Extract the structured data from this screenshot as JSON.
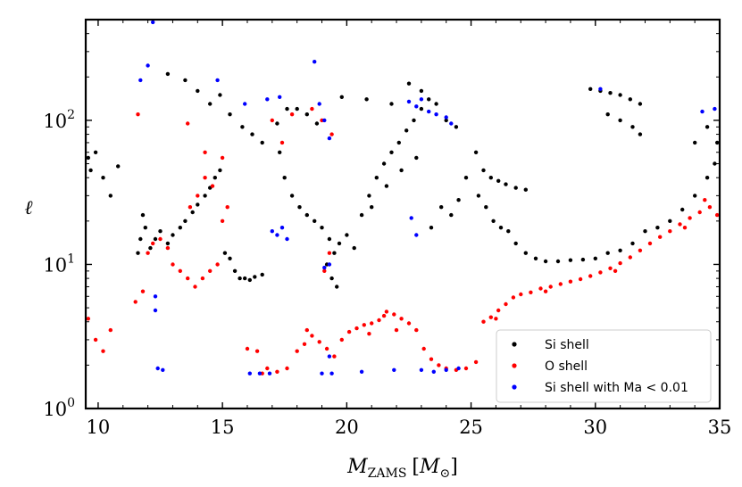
{
  "chart_data": {
    "type": "scatter",
    "title": "",
    "xlabel": "M_ZAMS [M_⊙]",
    "xlabel_parts": {
      "main": "M",
      "sub": "ZAMS",
      "bracket_open": "[",
      "bracket_close": "]",
      "unit_main": "M",
      "unit_sub": "⊙"
    },
    "ylabel": "ℓ",
    "xlim": [
      9.5,
      35
    ],
    "ylim": [
      1,
      500
    ],
    "yscale": "log",
    "x_ticks": [
      {
        "value": 10,
        "label": "10"
      },
      {
        "value": 15,
        "label": "15"
      },
      {
        "value": 20,
        "label": "20"
      },
      {
        "value": 25,
        "label": "25"
      },
      {
        "value": 30,
        "label": "30"
      },
      {
        "value": 35,
        "label": "35"
      }
    ],
    "y_ticks": [
      {
        "value": 1,
        "label": "10",
        "exp": "0"
      },
      {
        "value": 10,
        "label": "10",
        "exp": "1"
      },
      {
        "value": 100,
        "label": "10",
        "exp": "2"
      }
    ],
    "legend": {
      "placement": "lower-right",
      "entries": [
        "Si shell",
        "O shell",
        "Si shell with Ma < 0.01"
      ]
    },
    "series": [
      {
        "name": "Si shell",
        "color": "#000000",
        "points": [
          [
            9.6,
            55
          ],
          [
            9.7,
            45
          ],
          [
            9.9,
            60
          ],
          [
            10.2,
            40
          ],
          [
            10.5,
            30
          ],
          [
            10.8,
            48
          ],
          [
            11.6,
            12
          ],
          [
            11.7,
            15
          ],
          [
            11.8,
            22
          ],
          [
            11.9,
            18
          ],
          [
            12.1,
            13
          ],
          [
            12.3,
            15
          ],
          [
            12.5,
            17
          ],
          [
            12.8,
            14
          ],
          [
            13.0,
            16
          ],
          [
            13.3,
            18
          ],
          [
            13.5,
            20
          ],
          [
            13.8,
            23
          ],
          [
            14.0,
            26
          ],
          [
            14.3,
            30
          ],
          [
            14.5,
            34
          ],
          [
            14.7,
            40
          ],
          [
            14.9,
            45
          ],
          [
            15.1,
            12
          ],
          [
            15.3,
            11
          ],
          [
            15.5,
            9
          ],
          [
            15.7,
            8
          ],
          [
            15.9,
            8
          ],
          [
            16.1,
            7.8
          ],
          [
            16.3,
            8.2
          ],
          [
            16.6,
            8.5
          ],
          [
            12.8,
            210
          ],
          [
            13.5,
            190
          ],
          [
            14.0,
            160
          ],
          [
            14.5,
            130
          ],
          [
            14.9,
            150
          ],
          [
            15.3,
            110
          ],
          [
            15.8,
            90
          ],
          [
            16.2,
            80
          ],
          [
            16.6,
            70
          ],
          [
            17.2,
            95
          ],
          [
            17.6,
            120
          ],
          [
            18.0,
            120
          ],
          [
            18.4,
            110
          ],
          [
            18.8,
            95
          ],
          [
            17.3,
            60
          ],
          [
            17.5,
            40
          ],
          [
            17.8,
            30
          ],
          [
            18.1,
            25
          ],
          [
            18.4,
            22
          ],
          [
            18.7,
            20
          ],
          [
            19.0,
            18
          ],
          [
            19.3,
            15
          ],
          [
            19.5,
            12
          ],
          [
            19.7,
            14
          ],
          [
            20.0,
            16
          ],
          [
            20.3,
            13
          ],
          [
            20.6,
            22
          ],
          [
            20.9,
            30
          ],
          [
            21.2,
            40
          ],
          [
            21.5,
            50
          ],
          [
            21.8,
            60
          ],
          [
            22.1,
            70
          ],
          [
            22.4,
            85
          ],
          [
            22.7,
            100
          ],
          [
            23.0,
            120
          ],
          [
            23.3,
            140
          ],
          [
            23.6,
            130
          ],
          [
            24.0,
            100
          ],
          [
            24.4,
            90
          ],
          [
            22.5,
            180
          ],
          [
            23.0,
            160
          ],
          [
            19.4,
            8
          ],
          [
            19.6,
            7
          ],
          [
            19.2,
            10
          ],
          [
            25.2,
            60
          ],
          [
            25.5,
            45
          ],
          [
            25.8,
            40
          ],
          [
            26.1,
            38
          ],
          [
            26.4,
            36
          ],
          [
            26.8,
            34
          ],
          [
            27.2,
            33
          ],
          [
            25.3,
            30
          ],
          [
            25.6,
            25
          ],
          [
            25.9,
            20
          ],
          [
            26.2,
            18
          ],
          [
            26.5,
            17
          ],
          [
            26.8,
            14
          ],
          [
            27.2,
            12
          ],
          [
            27.6,
            11
          ],
          [
            28.0,
            10.5
          ],
          [
            28.5,
            10.5
          ],
          [
            29.0,
            10.7
          ],
          [
            29.5,
            10.8
          ],
          [
            30.0,
            11
          ],
          [
            30.5,
            12
          ],
          [
            31.0,
            12.5
          ],
          [
            31.5,
            14
          ],
          [
            32.0,
            17
          ],
          [
            32.5,
            18
          ],
          [
            33.0,
            20
          ],
          [
            33.5,
            24
          ],
          [
            34.0,
            30
          ],
          [
            34.5,
            40
          ],
          [
            34.8,
            50
          ],
          [
            34.9,
            70
          ],
          [
            34.5,
            90
          ],
          [
            34.0,
            70
          ],
          [
            29.8,
            165
          ],
          [
            30.2,
            160
          ],
          [
            30.6,
            155
          ],
          [
            31.0,
            150
          ],
          [
            31.4,
            140
          ],
          [
            31.8,
            130
          ],
          [
            30.5,
            110
          ],
          [
            31.0,
            100
          ],
          [
            31.5,
            90
          ],
          [
            31.8,
            80
          ],
          [
            24.8,
            40
          ],
          [
            24.5,
            28
          ],
          [
            24.2,
            22
          ],
          [
            23.8,
            25
          ],
          [
            23.4,
            18
          ],
          [
            21.0,
            25
          ],
          [
            21.6,
            35
          ],
          [
            22.2,
            45
          ],
          [
            22.8,
            55
          ],
          [
            19.8,
            145
          ],
          [
            20.8,
            140
          ],
          [
            21.8,
            130
          ]
        ]
      },
      {
        "name": "O shell",
        "color": "#ff0000",
        "points": [
          [
            9.6,
            4.2
          ],
          [
            9.9,
            3.0
          ],
          [
            10.2,
            2.5
          ],
          [
            10.5,
            3.5
          ],
          [
            11.5,
            5.5
          ],
          [
            11.8,
            6.5
          ],
          [
            12.0,
            12
          ],
          [
            12.2,
            14
          ],
          [
            12.5,
            15
          ],
          [
            12.8,
            13
          ],
          [
            13.0,
            10
          ],
          [
            13.3,
            9
          ],
          [
            13.6,
            8
          ],
          [
            13.9,
            7
          ],
          [
            14.2,
            8
          ],
          [
            14.5,
            9
          ],
          [
            14.8,
            10
          ],
          [
            15.0,
            20
          ],
          [
            15.2,
            25
          ],
          [
            14.6,
            35
          ],
          [
            14.3,
            40
          ],
          [
            14.0,
            30
          ],
          [
            13.7,
            25
          ],
          [
            11.6,
            110
          ],
          [
            13.6,
            95
          ],
          [
            14.3,
            60
          ],
          [
            15.0,
            55
          ],
          [
            16.0,
            2.6
          ],
          [
            16.4,
            2.5
          ],
          [
            16.8,
            1.9
          ],
          [
            17.2,
            1.8
          ],
          [
            17.6,
            1.9
          ],
          [
            18.0,
            2.5
          ],
          [
            18.3,
            2.8
          ],
          [
            18.6,
            3.2
          ],
          [
            18.9,
            2.9
          ],
          [
            19.2,
            2.6
          ],
          [
            19.5,
            2.3
          ],
          [
            19.8,
            3.0
          ],
          [
            20.1,
            3.4
          ],
          [
            20.4,
            3.6
          ],
          [
            20.7,
            3.8
          ],
          [
            21.0,
            3.9
          ],
          [
            21.3,
            4.1
          ],
          [
            21.6,
            4.7
          ],
          [
            21.9,
            4.5
          ],
          [
            22.2,
            4.2
          ],
          [
            22.5,
            3.9
          ],
          [
            22.8,
            3.5
          ],
          [
            23.1,
            2.6
          ],
          [
            23.4,
            2.2
          ],
          [
            23.7,
            2.0
          ],
          [
            24.0,
            1.9
          ],
          [
            24.4,
            1.85
          ],
          [
            24.8,
            1.9
          ],
          [
            25.2,
            2.1
          ],
          [
            25.5,
            4.0
          ],
          [
            25.8,
            4.3
          ],
          [
            26.1,
            4.8
          ],
          [
            26.4,
            5.3
          ],
          [
            26.7,
            5.9
          ],
          [
            27.0,
            6.2
          ],
          [
            27.4,
            6.4
          ],
          [
            27.8,
            6.8
          ],
          [
            28.2,
            7.0
          ],
          [
            28.6,
            7.3
          ],
          [
            29.0,
            7.6
          ],
          [
            29.4,
            7.9
          ],
          [
            29.8,
            8.3
          ],
          [
            30.2,
            8.8
          ],
          [
            30.6,
            9.4
          ],
          [
            31.0,
            10.2
          ],
          [
            31.4,
            11.2
          ],
          [
            31.8,
            12.5
          ],
          [
            32.2,
            14.0
          ],
          [
            32.6,
            15.5
          ],
          [
            33.0,
            17.0
          ],
          [
            33.4,
            19.0
          ],
          [
            33.8,
            21.0
          ],
          [
            34.2,
            23.0
          ],
          [
            34.6,
            25.0
          ],
          [
            34.9,
            22.0
          ],
          [
            34.4,
            28.0
          ],
          [
            33.6,
            18.0
          ],
          [
            30.8,
            9.0
          ],
          [
            28.0,
            6.5
          ],
          [
            26.0,
            4.2
          ],
          [
            17.4,
            70
          ],
          [
            17.0,
            100
          ],
          [
            17.8,
            110
          ],
          [
            18.6,
            120
          ],
          [
            19.0,
            100
          ],
          [
            19.4,
            80
          ],
          [
            19.3,
            12
          ],
          [
            19.1,
            9
          ],
          [
            21.5,
            4.4
          ],
          [
            22.0,
            3.5
          ],
          [
            20.9,
            3.3
          ],
          [
            16.6,
            1.75
          ],
          [
            18.4,
            3.5
          ]
        ]
      },
      {
        "name": "Si shell with Ma < 0.01",
        "color": "#0000ff",
        "points": [
          [
            12.2,
            480
          ],
          [
            12.0,
            240
          ],
          [
            11.7,
            190
          ],
          [
            14.8,
            190
          ],
          [
            12.3,
            6.0
          ],
          [
            12.3,
            4.8
          ],
          [
            12.4,
            1.9
          ],
          [
            12.6,
            1.85
          ],
          [
            16.1,
            1.75
          ],
          [
            16.5,
            1.75
          ],
          [
            16.9,
            1.75
          ],
          [
            17.0,
            17
          ],
          [
            17.2,
            16
          ],
          [
            17.4,
            18
          ],
          [
            17.6,
            15
          ],
          [
            17.3,
            145
          ],
          [
            16.8,
            140
          ],
          [
            15.9,
            130
          ],
          [
            18.7,
            255
          ],
          [
            18.9,
            130
          ],
          [
            19.1,
            100
          ],
          [
            19.3,
            75
          ],
          [
            19.3,
            10
          ],
          [
            19.1,
            9.5
          ],
          [
            19.3,
            2.3
          ],
          [
            19.0,
            1.75
          ],
          [
            19.4,
            1.75
          ],
          [
            20.6,
            1.8
          ],
          [
            21.9,
            1.85
          ],
          [
            22.5,
            135
          ],
          [
            22.8,
            125
          ],
          [
            23.0,
            140
          ],
          [
            23.3,
            115
          ],
          [
            23.6,
            110
          ],
          [
            24.0,
            105
          ],
          [
            24.2,
            95
          ],
          [
            23.0,
            1.85
          ],
          [
            23.5,
            1.8
          ],
          [
            24.0,
            1.85
          ],
          [
            24.5,
            1.9
          ],
          [
            22.6,
            21
          ],
          [
            22.8,
            16
          ],
          [
            34.3,
            115
          ],
          [
            34.8,
            120
          ],
          [
            30.2,
            165
          ]
        ]
      }
    ]
  }
}
